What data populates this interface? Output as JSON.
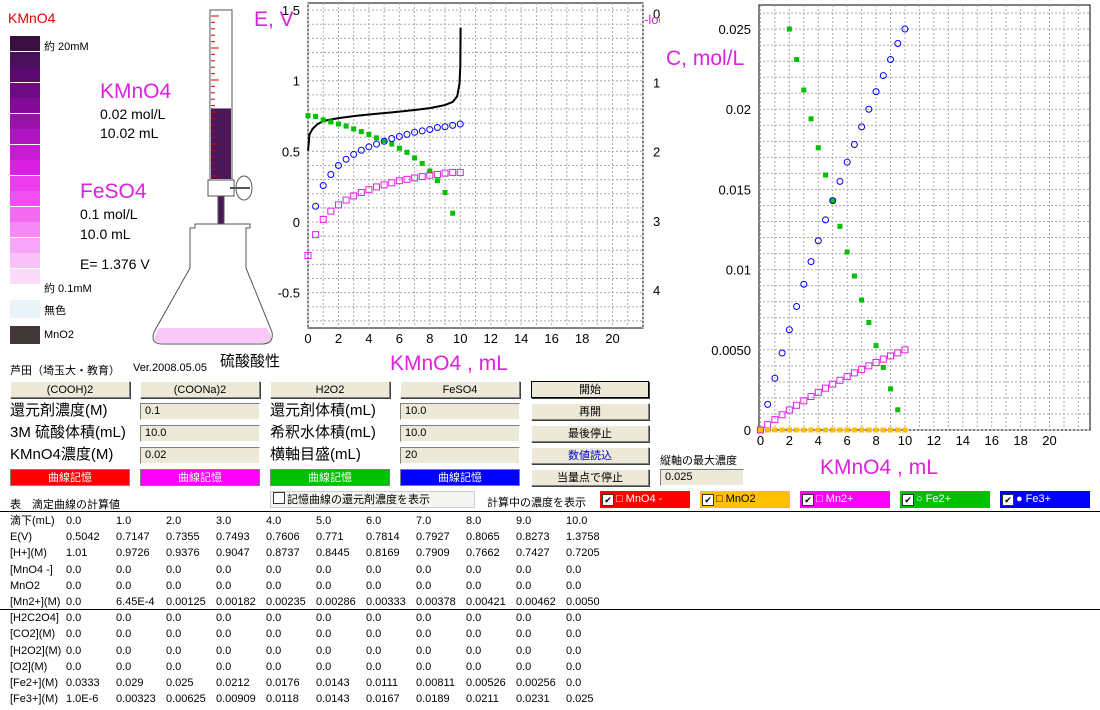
{
  "colorbar": {
    "title": "KMnO4",
    "swatches": [
      "#3a1040",
      "#46105a",
      "#5a0a6e",
      "#6e0a84",
      "#840a98",
      "#9a10aa",
      "#b014c0",
      "#c81ad2",
      "#dc20e2",
      "#ec3cec",
      "#f050f0",
      "#f26af2",
      "#f488f4",
      "#f6a6f6",
      "#f8c2f8",
      "#fadcfa"
    ],
    "label_top": "約 20mM",
    "label_bottom": "約 0.1mM",
    "colorless_label": "無色",
    "colorless_color": "#e8f4f8",
    "mno2_label": "MnO2",
    "mno2_color": "#403838"
  },
  "apparatus": {
    "kmno4_title": "KMnO4",
    "kmno4_conc": "0.02 mol/L",
    "kmno4_vol": "10.02 mL",
    "feso4_title": "FeSO4",
    "feso4_conc": "0.1 mol/L",
    "feso4_vol": "10.0 mL",
    "potential": "E= 1.376 V",
    "flask_label": "硫酸酸性",
    "burette_fill_fraction": 0.42
  },
  "author": "芦田（埼玉大・教育）",
  "version": "Ver.2008.05.05",
  "reductant_buttons": [
    "(COOH)2",
    "(COONa)2",
    "H2O2",
    "FeSO4"
  ],
  "control_buttons": [
    "開始",
    "再開",
    "最後停止",
    "数値読込",
    "当量点で停止"
  ],
  "params": {
    "reductant_conc_label": "還元剤濃度(M)",
    "reductant_conc": "0.1",
    "h2so4_label": "3M 硫酸体積(mL)",
    "h2so4": "10.0",
    "kmno4_label": "KMnO4濃度(M)",
    "kmno4": "0.02",
    "reductant_vol_label": "還元剤体積(mL)",
    "reductant_vol": "10.0",
    "dilution_label": "希釈水体積(mL)",
    "dilution": "10.0",
    "xscale_label": "横軸目盛(mL)",
    "xscale": "20",
    "ymax_label": "縦軸の最大濃度",
    "ymax": "0.025"
  },
  "curve_buttons": [
    {
      "label": "曲線記憶",
      "color": "#ff0000"
    },
    {
      "label": "曲線記憶",
      "color": "#ff00ff"
    },
    {
      "label": "曲線記憶",
      "color": "#00c000"
    },
    {
      "label": "曲線記憶",
      "color": "#0000ff"
    }
  ],
  "table_title": "表　滴定曲線の計算値",
  "show_conc_checkbox": "記憶曲線の還元剤濃度を表示",
  "calc_conc_label": "計算中の濃度を表示",
  "species_checks": [
    {
      "label": "MnO4 -",
      "color": "#ff0000",
      "text": "#ffffff",
      "marker": "□"
    },
    {
      "label": "MnO2",
      "color": "#ffc000",
      "text": "#000000",
      "marker": "□"
    },
    {
      "label": "Mn2+",
      "color": "#ff00ff",
      "text": "#ffffff",
      "marker": "□"
    },
    {
      "label": "Fe2+",
      "color": "#00c000",
      "text": "#ffffff",
      "marker": "○"
    },
    {
      "label": "Fe3+",
      "color": "#0000ff",
      "text": "#ffffff",
      "marker": "●"
    }
  ],
  "table_rows": [
    [
      "滴下(mL)",
      "0.0",
      "1.0",
      "2.0",
      "3.0",
      "4.0",
      "5.0",
      "6.0",
      "7.0",
      "8.0",
      "9.0",
      "10.0"
    ],
    [
      "E(V)",
      "0.5042",
      "0.7147",
      "0.7355",
      "0.7493",
      "0.7606",
      "0.771",
      "0.7814",
      "0.7927",
      "0.8065",
      "0.8273",
      "1.3758"
    ],
    [
      "[H+](M)",
      "1.01",
      "0.9726",
      "0.9376",
      "0.9047",
      "0.8737",
      "0.8445",
      "0.8169",
      "0.7909",
      "0.7662",
      "0.7427",
      "0.7205"
    ],
    [
      "[MnO4 -]",
      "0.0",
      "0.0",
      "0.0",
      "0.0",
      "0.0",
      "0.0",
      "0.0",
      "0.0",
      "0.0",
      "0.0",
      "0.0"
    ],
    [
      "MnO2",
      "0.0",
      "0.0",
      "0.0",
      "0.0",
      "0.0",
      "0.0",
      "0.0",
      "0.0",
      "0.0",
      "0.0",
      "0.0"
    ],
    [
      "[Mn2+](M)",
      "0.0",
      "6.45E-4",
      "0.00125",
      "0.00182",
      "0.00235",
      "0.00286",
      "0.00333",
      "0.00378",
      "0.00421",
      "0.00462",
      "0.0050"
    ],
    [
      "[H2C2O4]",
      "0.0",
      "0.0",
      "0.0",
      "0.0",
      "0.0",
      "0.0",
      "0.0",
      "0.0",
      "0.0",
      "0.0",
      "0.0"
    ],
    [
      "[CO2](M)",
      "0.0",
      "0.0",
      "0.0",
      "0.0",
      "0.0",
      "0.0",
      "0.0",
      "0.0",
      "0.0",
      "0.0",
      "0.0"
    ],
    [
      "[H2O2](M)",
      "0.0",
      "0.0",
      "0.0",
      "0.0",
      "0.0",
      "0.0",
      "0.0",
      "0.0",
      "0.0",
      "0.0",
      "0.0"
    ],
    [
      "[O2](M)",
      "0.0",
      "0.0",
      "0.0",
      "0.0",
      "0.0",
      "0.0",
      "0.0",
      "0.0",
      "0.0",
      "0.0",
      "0.0"
    ],
    [
      "[Fe2+](M)",
      "0.0333",
      "0.029",
      "0.025",
      "0.0212",
      "0.0176",
      "0.0143",
      "0.0111",
      "0.00811",
      "0.00526",
      "0.00256",
      "0.0"
    ],
    [
      "[Fe3+](M)",
      "1.0E-6",
      "0.00323",
      "0.00625",
      "0.00909",
      "0.0118",
      "0.0143",
      "0.0167",
      "0.0189",
      "0.0211",
      "0.0231",
      "0.025"
    ]
  ],
  "chart_data": [
    {
      "type": "line",
      "ylabel": "E, V",
      "y2label": "-log(C)",
      "xlabel": "KMnO4 , mL",
      "xlim": [
        0,
        22
      ],
      "ylim": [
        -0.75,
        1.55
      ],
      "y2lim": [
        4.55,
        -0.15
      ],
      "x_ticks": [
        0,
        2,
        4,
        6,
        8,
        10,
        12,
        14,
        16,
        18,
        20
      ],
      "y_ticks": [
        -0.5,
        0,
        0.5,
        1,
        1.5
      ],
      "y2_ticks": [
        0,
        1,
        2,
        3,
        4
      ],
      "grid": true,
      "series": [
        {
          "color": "#000000",
          "style": "line",
          "x": [
            0,
            0.1,
            0.3,
            0.6,
            1,
            2,
            3,
            4,
            5,
            6,
            7,
            8,
            9,
            9.5,
            9.8,
            9.95,
            10,
            10.02
          ],
          "y": [
            0.5042,
            0.62,
            0.66,
            0.69,
            0.7147,
            0.7355,
            0.7493,
            0.7606,
            0.771,
            0.7814,
            0.7927,
            0.8065,
            0.8273,
            0.85,
            0.89,
            0.98,
            1.1,
            1.3758
          ]
        },
        {
          "color": "#00c000",
          "style": "filled-square",
          "x": [
            0,
            0.5,
            1,
            1.5,
            2,
            2.5,
            3,
            3.5,
            4,
            4.5,
            5,
            5.5,
            6,
            6.5,
            7,
            7.5,
            8,
            8.5,
            9,
            9.5
          ],
          "y2": [
            1.48,
            1.49,
            1.54,
            1.57,
            1.6,
            1.63,
            1.67,
            1.71,
            1.75,
            1.8,
            1.84,
            1.89,
            1.95,
            2.01,
            2.09,
            2.17,
            2.28,
            2.42,
            2.59,
            2.89
          ]
        },
        {
          "color": "#0000ff",
          "style": "open-circle",
          "x": [
            0.5,
            1,
            1.5,
            2,
            2.5,
            3,
            3.5,
            4,
            4.5,
            5,
            5.5,
            6,
            6.5,
            7,
            7.5,
            8,
            8.5,
            9,
            9.5,
            10
          ],
          "y2": [
            2.79,
            2.49,
            2.33,
            2.2,
            2.11,
            2.04,
            1.98,
            1.93,
            1.89,
            1.85,
            1.81,
            1.78,
            1.75,
            1.72,
            1.7,
            1.68,
            1.65,
            1.64,
            1.62,
            1.6
          ]
        },
        {
          "color": "#e020e0",
          "style": "open-square",
          "x": [
            0,
            0.5,
            1,
            1.5,
            2,
            2.5,
            3,
            3.5,
            4,
            4.5,
            5,
            5.5,
            6,
            6.5,
            7,
            7.5,
            8,
            8.5,
            9,
            9.5,
            10
          ],
          "y2": [
            3.5,
            3.2,
            2.98,
            2.86,
            2.77,
            2.7,
            2.64,
            2.59,
            2.55,
            2.51,
            2.48,
            2.45,
            2.42,
            2.4,
            2.38,
            2.36,
            2.34,
            2.33,
            2.31,
            2.3,
            2.3
          ]
        }
      ]
    },
    {
      "type": "scatter",
      "ylabel": "C, mol/L",
      "xlabel": "KMnO4 , mL",
      "xlim": [
        -0.1,
        22.8
      ],
      "ylim": [
        0,
        0.0265
      ],
      "x_ticks": [
        0,
        2,
        4,
        6,
        8,
        10,
        12,
        14,
        16,
        18,
        20
      ],
      "y_ticks": [
        0,
        0.005,
        0.01,
        0.015,
        0.02,
        0.025
      ],
      "y_tick_labels": [
        "0",
        "0.0050",
        "0.01",
        "0.015",
        "0.02",
        "0.025"
      ],
      "grid": true,
      "series": [
        {
          "color": "#00c000",
          "style": "filled-square",
          "x": [
            2,
            2.5,
            3,
            3.5,
            4,
            4.5,
            5,
            5.5,
            6,
            6.5,
            7,
            7.5,
            8,
            8.5,
            9,
            9.5,
            10
          ],
          "y": [
            0.025,
            0.0231,
            0.0212,
            0.0194,
            0.0176,
            0.0159,
            0.0143,
            0.0127,
            0.0111,
            0.0096,
            0.0081,
            0.0067,
            0.00526,
            0.0039,
            0.00256,
            0.00126,
            0.0
          ]
        },
        {
          "color": "#0000ff",
          "style": "open-circle",
          "x": [
            0,
            0.5,
            1,
            1.5,
            2,
            2.5,
            3,
            3.5,
            4,
            4.5,
            5,
            5.5,
            6,
            6.5,
            7,
            7.5,
            8,
            8.5,
            9,
            9.5,
            10
          ],
          "y": [
            0.0,
            0.0016,
            0.00323,
            0.0048,
            0.00625,
            0.0077,
            0.00909,
            0.0105,
            0.0118,
            0.0131,
            0.0143,
            0.0155,
            0.0167,
            0.0178,
            0.0189,
            0.02,
            0.0211,
            0.0221,
            0.0231,
            0.0241,
            0.025
          ]
        },
        {
          "color": "#e020e0",
          "style": "open-square",
          "x": [
            0,
            0.5,
            1,
            1.5,
            2,
            2.5,
            3,
            3.5,
            4,
            4.5,
            5,
            5.5,
            6,
            6.5,
            7,
            7.5,
            8,
            8.5,
            9,
            9.5,
            10
          ],
          "y": [
            0.0,
            0.00033,
            0.000645,
            0.00095,
            0.00125,
            0.00154,
            0.00182,
            0.00209,
            0.00235,
            0.00261,
            0.00286,
            0.0031,
            0.00333,
            0.00356,
            0.00378,
            0.004,
            0.00421,
            0.00442,
            0.00462,
            0.00481,
            0.005
          ]
        },
        {
          "color": "#ff0000",
          "style": "filled-square",
          "x": [
            0,
            0.5,
            1,
            1.5,
            2,
            2.5,
            3,
            3.5,
            4,
            4.5,
            5,
            5.5,
            6,
            6.5,
            7,
            7.5,
            8,
            8.5,
            9,
            9.5,
            10
          ],
          "y": [
            0,
            0,
            0,
            0,
            0,
            0,
            0,
            0,
            0,
            0,
            0,
            0,
            0,
            0,
            0,
            0,
            0,
            0,
            0,
            0,
            0
          ]
        },
        {
          "color": "#ffc000",
          "style": "filled-square",
          "x": [
            0,
            0.5,
            1,
            1.5,
            2,
            2.5,
            3,
            3.5,
            4,
            4.5,
            5,
            5.5,
            6,
            6.5,
            7,
            7.5,
            8,
            8.5,
            9,
            9.5,
            10
          ],
          "y": [
            0,
            0,
            0,
            0,
            0,
            0,
            0,
            0,
            0,
            0,
            0,
            0,
            0,
            0,
            0,
            0,
            0,
            0,
            0,
            0,
            0
          ]
        }
      ]
    }
  ]
}
